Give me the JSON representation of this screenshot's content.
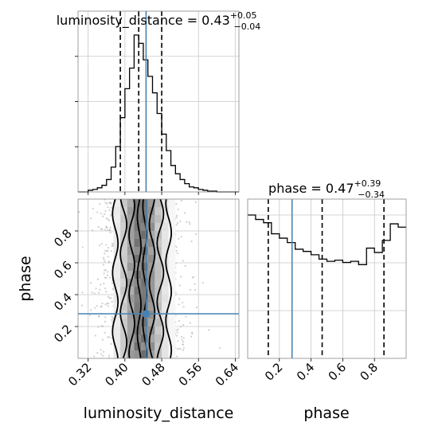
{
  "chart_data": {
    "type": "corner",
    "parameters": [
      "luminosity_distance",
      "phase"
    ],
    "truths": {
      "luminosity_distance": 0.446,
      "phase": 0.28
    },
    "panels": [
      {
        "id": "hist-luminosity-distance",
        "type": "histogram",
        "title": "luminosity_distance = 0.43",
        "title_base": "luminosity_distance = 0.43",
        "title_sup": "+0.05",
        "title_sub": "−0.04",
        "xlim": [
          0.298,
          0.648
        ],
        "bin_edges": [
          0.29,
          0.3,
          0.31,
          0.32,
          0.33,
          0.34,
          0.35,
          0.36,
          0.37,
          0.38,
          0.39,
          0.4,
          0.41,
          0.42,
          0.43,
          0.44,
          0.45,
          0.46,
          0.47,
          0.48,
          0.49,
          0.5,
          0.51,
          0.52,
          0.53,
          0.54,
          0.55,
          0.56,
          0.57,
          0.58,
          0.59,
          0.6,
          0.61,
          0.62,
          0.63,
          0.64,
          0.65
        ],
        "counts": [
          0,
          0,
          0,
          2,
          3,
          5,
          8,
          15,
          30,
          55,
          90,
          125,
          150,
          190,
          180,
          160,
          140,
          120,
          95,
          70,
          50,
          32,
          22,
          15,
          10,
          6,
          5,
          3,
          2,
          1,
          1,
          0,
          0,
          0,
          0,
          0
        ],
        "quantile_lines": [
          0.39,
          0.43,
          0.48
        ],
        "truth": 0.446
      },
      {
        "id": "hist-phase",
        "type": "histogram",
        "title": "phase = 0.47",
        "title_base": "phase = 0.47",
        "title_sup": "+0.39",
        "title_sub": "−0.34",
        "xlim": [
          0.0,
          1.0
        ],
        "bin_edges": [
          0.0,
          0.05,
          0.1,
          0.15,
          0.2,
          0.25,
          0.3,
          0.35,
          0.4,
          0.45,
          0.5,
          0.55,
          0.6,
          0.65,
          0.7,
          0.75,
          0.8,
          0.85,
          0.9,
          0.95,
          1.0
        ],
        "counts": [
          130,
          126,
          123,
          113,
          109,
          105,
          99,
          97,
          94,
          90,
          88,
          89,
          87,
          88,
          85,
          100,
          96,
          107,
          122,
          119
        ],
        "quantile_lines": [
          0.13,
          0.47,
          0.86
        ],
        "truth": 0.28
      },
      {
        "id": "contour-2d",
        "type": "2d-density",
        "xlim": [
          0.298,
          0.648
        ],
        "ylim": [
          0.0,
          1.0
        ],
        "truth": [
          0.446,
          0.28
        ]
      }
    ],
    "x_ticks_luminosity_distance": [
      "0.32",
      "0.40",
      "0.48",
      "0.56",
      "0.64"
    ],
    "x_ticks_luminosity_distance_values": [
      0.32,
      0.4,
      0.48,
      0.56,
      0.64
    ],
    "y_ticks_phase": [
      "0.2",
      "0.4",
      "0.6",
      "0.8"
    ],
    "y_ticks_phase_values": [
      0.2,
      0.4,
      0.6,
      0.8
    ],
    "x_ticks_phase": [
      "0.2",
      "0.4",
      "0.6",
      "0.8"
    ],
    "x_ticks_phase_values": [
      0.2,
      0.4,
      0.6,
      0.8
    ],
    "xlabel_left": "luminosity_distance",
    "xlabel_right": "phase",
    "ylabel": "phase",
    "grid": true,
    "colors": {
      "truth": "#4682b4",
      "hist": "#000000",
      "grid": "#c8c8c8",
      "scatter": "#b0b0b0"
    }
  }
}
